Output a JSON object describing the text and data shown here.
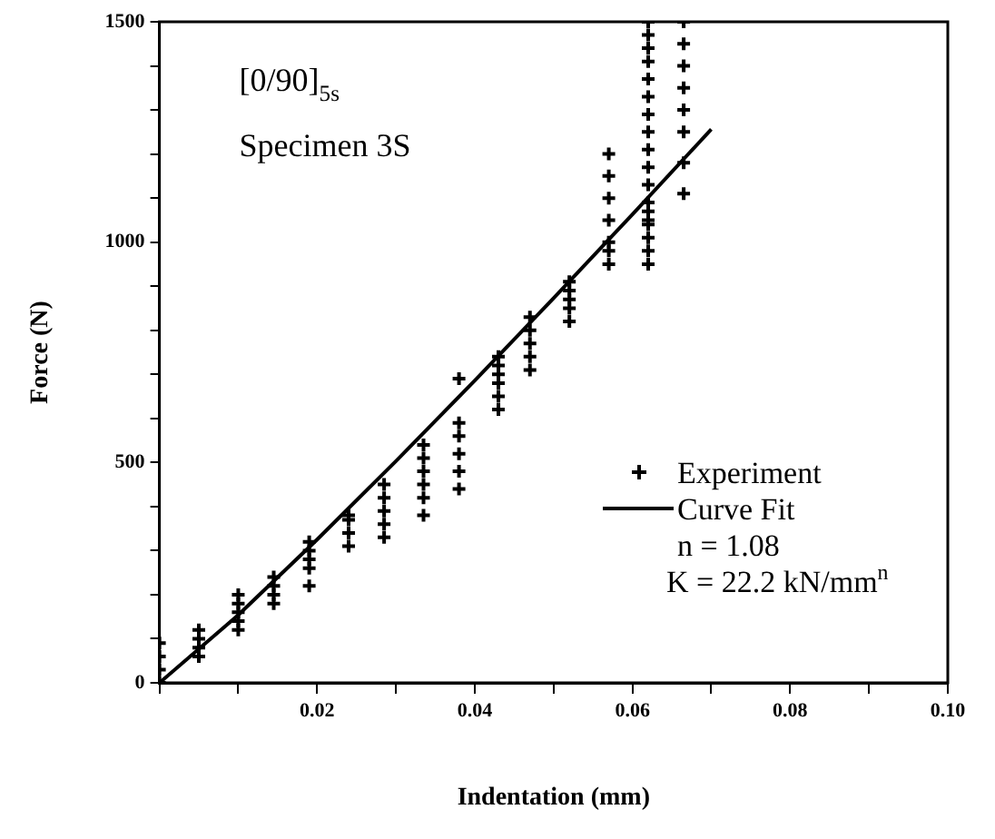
{
  "chart_data": {
    "type": "scatter",
    "xlabel": "Indentation (mm)",
    "ylabel": "Force (N)",
    "xlim": [
      0,
      0.1
    ],
    "ylim": [
      0,
      1500
    ],
    "xticks": [
      {
        "value": 0,
        "label": null
      },
      {
        "value": 0.01,
        "label": null
      },
      0.02,
      {
        "value": 0.03,
        "label": null
      },
      0.04,
      {
        "value": 0.05,
        "label": null
      },
      0.06,
      {
        "value": 0.07,
        "label": null
      },
      0.08,
      {
        "value": 0.09,
        "label": null
      },
      {
        "value": 0.1,
        "label": "0.10"
      }
    ],
    "yticks": [
      0,
      {
        "value": 100,
        "label": null
      },
      {
        "value": 200,
        "label": null
      },
      {
        "value": 300,
        "label": null
      },
      {
        "value": 400,
        "label": null
      },
      500,
      {
        "value": 600,
        "label": null
      },
      {
        "value": 700,
        "label": null
      },
      {
        "value": 800,
        "label": null
      },
      {
        "value": 900,
        "label": null
      },
      1000,
      {
        "value": 1100,
        "label": null
      },
      {
        "value": 1200,
        "label": null
      },
      {
        "value": 1300,
        "label": null
      },
      {
        "value": 1400,
        "label": null
      },
      1500
    ],
    "grid": false,
    "legend": "bottom right",
    "annotations": [
      "[0/90]$_{5s}$",
      "Specimen 3S",
      "n = 1.08",
      "K = 22.2 kN/mm$^{n}$"
    ],
    "series": [
      {
        "name": "Experiment",
        "type": "scatter",
        "marker": "cross",
        "color": "#000000",
        "x": [
          0,
          0,
          0,
          0,
          0.005,
          0.005,
          0.005,
          0.005,
          0.01,
          0.01,
          0.01,
          0.01,
          0.01,
          0.0145,
          0.0145,
          0.0145,
          0.0145,
          0.019,
          0.019,
          0.019,
          0.019,
          0.019,
          0.024,
          0.024,
          0.024,
          0.024,
          0.0285,
          0.0285,
          0.0285,
          0.0285,
          0.0285,
          0.0335,
          0.0335,
          0.0335,
          0.0335,
          0.0335,
          0.0335,
          0.038,
          0.038,
          0.038,
          0.038,
          0.038,
          0.038,
          0.043,
          0.043,
          0.043,
          0.043,
          0.043,
          0.043,
          0.047,
          0.047,
          0.047,
          0.047,
          0.047,
          0.052,
          0.052,
          0.052,
          0.052,
          0.052,
          0.057,
          0.057,
          0.057,
          0.057,
          0.057,
          0.057,
          0.057,
          0.062,
          0.062,
          0.062,
          0.062,
          0.062,
          0.062,
          0.062,
          0.062,
          0.062,
          0.062,
          0.062,
          0.062,
          0.062,
          0.062,
          0.062,
          0.062,
          0.062,
          0.062,
          0.0665,
          0.0665,
          0.0665,
          0.0665,
          0.0665,
          0.0665,
          0.0665,
          0.0665
        ],
        "values": [
          0,
          30,
          60,
          90,
          60,
          80,
          100,
          120,
          120,
          140,
          160,
          180,
          200,
          180,
          200,
          220,
          240,
          220,
          260,
          280,
          300,
          320,
          310,
          340,
          370,
          380,
          330,
          360,
          390,
          420,
          450,
          380,
          420,
          450,
          480,
          510,
          540,
          440,
          480,
          520,
          560,
          590,
          690,
          620,
          650,
          680,
          700,
          720,
          740,
          710,
          740,
          770,
          800,
          830,
          820,
          850,
          870,
          890,
          910,
          950,
          980,
          1000,
          1050,
          1100,
          1150,
          1200,
          950,
          980,
          1010,
          1050,
          1090,
          1130,
          1170,
          1210,
          1250,
          1290,
          1330,
          1370,
          1410,
          1440,
          1470,
          1500,
          1040,
          1070,
          1110,
          1180,
          1250,
          1300,
          1350,
          1400,
          1450,
          1500
        ]
      },
      {
        "name": "Curve Fit",
        "type": "line",
        "marker": "none",
        "line_style": "solid",
        "color": "#000000",
        "x": [
          0,
          0.01,
          0.02,
          0.03,
          0.04,
          0.05,
          0.06,
          0.07
        ],
        "values": [
          0,
          154,
          325,
          503,
          686,
          873,
          1063,
          1256
        ]
      }
    ]
  }
}
